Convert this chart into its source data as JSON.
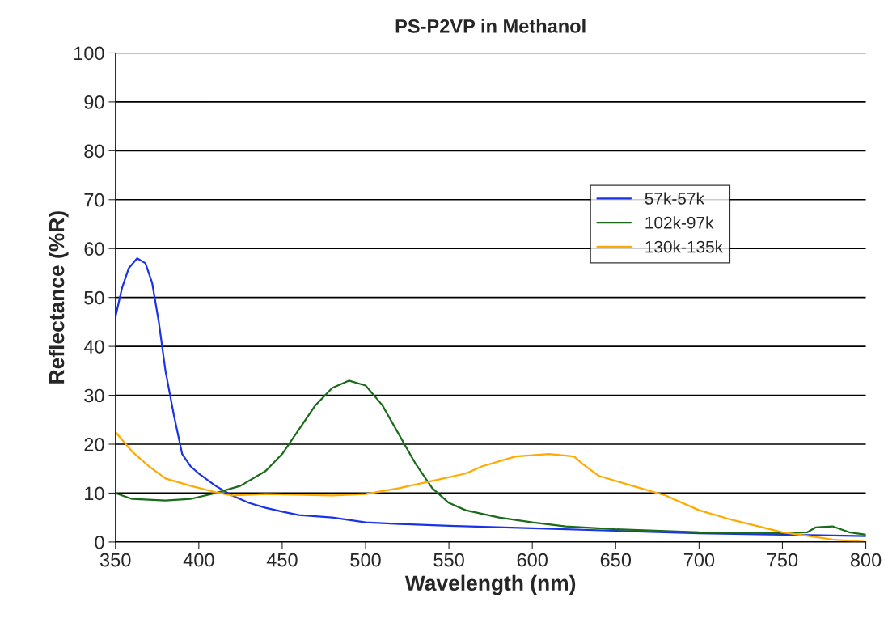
{
  "chart_data": {
    "type": "line",
    "title": "PS-P2VP in Methanol",
    "xlabel": "Wavelength (nm)",
    "ylabel": "Reflectance (%R)",
    "xlim": [
      350,
      800
    ],
    "xticks": [
      350,
      400,
      450,
      500,
      550,
      600,
      650,
      700,
      750,
      800
    ],
    "ylim": [
      0,
      100
    ],
    "yticks": [
      0,
      10,
      20,
      30,
      40,
      50,
      60,
      70,
      80,
      90,
      100
    ],
    "grid": "y",
    "legend": "right",
    "marker": "none",
    "line_style": "solid",
    "series": [
      {
        "name": "57k-57k",
        "color": "#1a33e6",
        "x": [
          350,
          354,
          358,
          363,
          368,
          372,
          376,
          380,
          385,
          390,
          395,
          400,
          410,
          420,
          430,
          440,
          450,
          460,
          480,
          500,
          520,
          550,
          600,
          650,
          700,
          750,
          800
        ],
        "values": [
          46,
          52,
          56,
          58,
          57,
          53,
          45,
          35,
          26,
          18,
          15.5,
          14,
          11.5,
          9.5,
          8,
          7,
          6.2,
          5.5,
          5,
          4,
          3.7,
          3.3,
          2.8,
          2.3,
          1.8,
          1.5,
          1.2
        ]
      },
      {
        "name": "102k-97k",
        "color": "#1a6b1a",
        "x": [
          350,
          360,
          380,
          395,
          410,
          425,
          440,
          450,
          460,
          470,
          480,
          490,
          500,
          510,
          520,
          530,
          540,
          550,
          560,
          580,
          600,
          620,
          650,
          700,
          750,
          765,
          770,
          780,
          790,
          800
        ],
        "values": [
          10,
          8.8,
          8.5,
          8.8,
          10,
          11.5,
          14.5,
          18,
          23,
          28,
          31.5,
          33,
          32,
          28,
          22,
          16,
          11,
          8,
          6.5,
          5,
          4,
          3.2,
          2.6,
          2,
          1.8,
          2,
          3,
          3.2,
          2,
          1.5
        ]
      },
      {
        "name": "130k-135k",
        "color": "#ffaa00",
        "x": [
          350,
          360,
          370,
          380,
          395,
          410,
          420,
          440,
          480,
          500,
          520,
          540,
          560,
          570,
          590,
          610,
          625,
          630,
          640,
          660,
          680,
          700,
          720,
          750,
          780,
          800
        ],
        "values": [
          22.5,
          18.5,
          15.5,
          13,
          11.5,
          10.2,
          9.5,
          9.8,
          9.5,
          9.8,
          11,
          12.5,
          14,
          15.5,
          17.5,
          18,
          17.5,
          16,
          13.5,
          11.5,
          9.5,
          6.5,
          4.5,
          2,
          0.5,
          0
        ]
      }
    ]
  }
}
